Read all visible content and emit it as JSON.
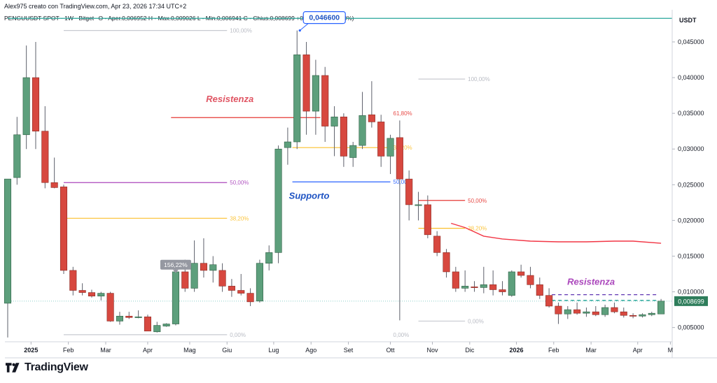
{
  "header": {
    "author_line": "Alex975 creato con TradingView.com, Apr 23, 2026 17:34 UTC+2",
    "symbol": "PENGUUSDT SPOT · 1W · Bitget",
    "ohlc": "O - Aper.0,006952 H - Max.0,009026 L - Min.0,006941 C - Chius.0,008699 +0,001747 (+25,13%)"
  },
  "footer": {
    "brand": "TradingView"
  },
  "chart_data": {
    "type": "candlestick",
    "timeframe": "1W",
    "currency": "USDT",
    "y_range": [
      0.0033,
      0.0495
    ],
    "y_ticks": [
      "0,045000",
      "0,040000",
      "0,035000",
      "0,030000",
      "0,025000",
      "0,020000",
      "0,015000",
      "0,010000",
      "0,005000"
    ],
    "y_tick_values": [
      0.045,
      0.04,
      0.035,
      0.03,
      0.025,
      0.02,
      0.015,
      0.01,
      0.005
    ],
    "x_labels": [
      {
        "label": "2025",
        "bold": true
      },
      {
        "label": "Feb"
      },
      {
        "label": "Mar"
      },
      {
        "label": "Apr"
      },
      {
        "label": "Mag"
      },
      {
        "label": "Giu"
      },
      {
        "label": "Lug"
      },
      {
        "label": "Ago"
      },
      {
        "label": "Set"
      },
      {
        "label": "Ott"
      },
      {
        "label": "Nov"
      },
      {
        "label": "Dic"
      },
      {
        "label": "2026",
        "bold": true
      },
      {
        "label": "Feb"
      },
      {
        "label": "Mar"
      },
      {
        "label": "Apr"
      },
      {
        "label": "M"
      }
    ],
    "x_label_index": [
      2.5,
      6.5,
      10.5,
      15,
      19.5,
      23.5,
      28.5,
      32.5,
      36.5,
      41,
      45.5,
      49.5,
      54.5,
      58.5,
      62.5,
      67.5,
      71
    ],
    "candles": [
      {
        "o": 0.0084,
        "h": 0.0255,
        "l": 0.0036,
        "c": 0.0258
      },
      {
        "o": 0.026,
        "h": 0.0345,
        "l": 0.025,
        "c": 0.032
      },
      {
        "o": 0.032,
        "h": 0.0445,
        "l": 0.03,
        "c": 0.04
      },
      {
        "o": 0.04,
        "h": 0.045,
        "l": 0.03,
        "c": 0.0325
      },
      {
        "o": 0.0325,
        "h": 0.036,
        "l": 0.0245,
        "c": 0.0253
      },
      {
        "o": 0.0253,
        "h": 0.0288,
        "l": 0.0245,
        "c": 0.0246
      },
      {
        "o": 0.0247,
        "h": 0.025,
        "l": 0.0125,
        "c": 0.013
      },
      {
        "o": 0.013,
        "h": 0.0135,
        "l": 0.0095,
        "c": 0.0102
      },
      {
        "o": 0.0102,
        "h": 0.0112,
        "l": 0.0095,
        "c": 0.0099
      },
      {
        "o": 0.0099,
        "h": 0.0103,
        "l": 0.0092,
        "c": 0.0094
      },
      {
        "o": 0.0094,
        "h": 0.01,
        "l": 0.0088,
        "c": 0.0098
      },
      {
        "o": 0.0098,
        "h": 0.01,
        "l": 0.0058,
        "c": 0.0059
      },
      {
        "o": 0.0059,
        "h": 0.0072,
        "l": 0.0054,
        "c": 0.0066
      },
      {
        "o": 0.0066,
        "h": 0.0072,
        "l": 0.0062,
        "c": 0.0064
      },
      {
        "o": 0.0064,
        "h": 0.0074,
        "l": 0.0063,
        "c": 0.0065
      },
      {
        "o": 0.0065,
        "h": 0.0068,
        "l": 0.0045,
        "c": 0.0045
      },
      {
        "o": 0.0044,
        "h": 0.0058,
        "l": 0.0043,
        "c": 0.0053
      },
      {
        "o": 0.0052,
        "h": 0.0056,
        "l": 0.0051,
        "c": 0.0055
      },
      {
        "o": 0.0055,
        "h": 0.0135,
        "l": 0.0053,
        "c": 0.0128
      },
      {
        "o": 0.0128,
        "h": 0.0145,
        "l": 0.01,
        "c": 0.0105
      },
      {
        "o": 0.0105,
        "h": 0.0172,
        "l": 0.01,
        "c": 0.014
      },
      {
        "o": 0.014,
        "h": 0.0175,
        "l": 0.012,
        "c": 0.013
      },
      {
        "o": 0.013,
        "h": 0.015,
        "l": 0.0113,
        "c": 0.0138
      },
      {
        "o": 0.013,
        "h": 0.014,
        "l": 0.01,
        "c": 0.0108
      },
      {
        "o": 0.0108,
        "h": 0.0118,
        "l": 0.0093,
        "c": 0.0102
      },
      {
        "o": 0.0102,
        "h": 0.0125,
        "l": 0.0095,
        "c": 0.0098
      },
      {
        "o": 0.0098,
        "h": 0.0105,
        "l": 0.008,
        "c": 0.0086
      },
      {
        "o": 0.0087,
        "h": 0.0145,
        "l": 0.0085,
        "c": 0.014
      },
      {
        "o": 0.014,
        "h": 0.0165,
        "l": 0.013,
        "c": 0.0155
      },
      {
        "o": 0.0155,
        "h": 0.0305,
        "l": 0.014,
        "c": 0.03
      },
      {
        "o": 0.0302,
        "h": 0.033,
        "l": 0.0278,
        "c": 0.031
      },
      {
        "o": 0.031,
        "h": 0.0466,
        "l": 0.03,
        "c": 0.0432
      },
      {
        "o": 0.0432,
        "h": 0.045,
        "l": 0.032,
        "c": 0.0353
      },
      {
        "o": 0.0353,
        "h": 0.0425,
        "l": 0.032,
        "c": 0.0403
      },
      {
        "o": 0.0403,
        "h": 0.0415,
        "l": 0.031,
        "c": 0.0332
      },
      {
        "o": 0.0332,
        "h": 0.036,
        "l": 0.029,
        "c": 0.0345
      },
      {
        "o": 0.0345,
        "h": 0.035,
        "l": 0.0275,
        "c": 0.029
      },
      {
        "o": 0.0288,
        "h": 0.031,
        "l": 0.0275,
        "c": 0.0305
      },
      {
        "o": 0.0305,
        "h": 0.038,
        "l": 0.03,
        "c": 0.0347
      },
      {
        "o": 0.0348,
        "h": 0.0395,
        "l": 0.033,
        "c": 0.0338
      },
      {
        "o": 0.0338,
        "h": 0.0348,
        "l": 0.0275,
        "c": 0.029
      },
      {
        "o": 0.029,
        "h": 0.032,
        "l": 0.0265,
        "c": 0.0315
      },
      {
        "o": 0.0316,
        "h": 0.034,
        "l": 0.006,
        "c": 0.0258
      },
      {
        "o": 0.0258,
        "h": 0.027,
        "l": 0.02,
        "c": 0.0222
      },
      {
        "o": 0.0222,
        "h": 0.024,
        "l": 0.02,
        "c": 0.0222
      },
      {
        "o": 0.0222,
        "h": 0.0235,
        "l": 0.0175,
        "c": 0.018
      },
      {
        "o": 0.0178,
        "h": 0.0185,
        "l": 0.015,
        "c": 0.0155
      },
      {
        "o": 0.0155,
        "h": 0.016,
        "l": 0.012,
        "c": 0.0128
      },
      {
        "o": 0.0128,
        "h": 0.0135,
        "l": 0.01,
        "c": 0.0105
      },
      {
        "o": 0.0105,
        "h": 0.013,
        "l": 0.01,
        "c": 0.0108
      },
      {
        "o": 0.0107,
        "h": 0.0115,
        "l": 0.01,
        "c": 0.0106
      },
      {
        "o": 0.0106,
        "h": 0.0135,
        "l": 0.0098,
        "c": 0.011
      },
      {
        "o": 0.011,
        "h": 0.013,
        "l": 0.0095,
        "c": 0.0103
      },
      {
        "o": 0.0103,
        "h": 0.0115,
        "l": 0.0095,
        "c": 0.01
      },
      {
        "o": 0.0095,
        "h": 0.013,
        "l": 0.0093,
        "c": 0.0128
      },
      {
        "o": 0.0128,
        "h": 0.0138,
        "l": 0.012,
        "c": 0.0123
      },
      {
        "o": 0.0123,
        "h": 0.0135,
        "l": 0.0105,
        "c": 0.011
      },
      {
        "o": 0.011,
        "h": 0.012,
        "l": 0.009,
        "c": 0.0095
      },
      {
        "o": 0.0095,
        "h": 0.0105,
        "l": 0.0078,
        "c": 0.008
      },
      {
        "o": 0.008,
        "h": 0.0085,
        "l": 0.0055,
        "c": 0.0069
      },
      {
        "o": 0.0069,
        "h": 0.008,
        "l": 0.0062,
        "c": 0.0075
      },
      {
        "o": 0.0075,
        "h": 0.0085,
        "l": 0.0068,
        "c": 0.007
      },
      {
        "o": 0.007,
        "h": 0.0078,
        "l": 0.0065,
        "c": 0.0072
      },
      {
        "o": 0.0072,
        "h": 0.008,
        "l": 0.0066,
        "c": 0.0068
      },
      {
        "o": 0.0068,
        "h": 0.0082,
        "l": 0.0065,
        "c": 0.0078
      },
      {
        "o": 0.0078,
        "h": 0.0085,
        "l": 0.007,
        "c": 0.0072
      },
      {
        "o": 0.0072,
        "h": 0.0078,
        "l": 0.0064,
        "c": 0.0067
      },
      {
        "o": 0.0067,
        "h": 0.007,
        "l": 0.0063,
        "c": 0.0066
      },
      {
        "o": 0.0066,
        "h": 0.007,
        "l": 0.0064,
        "c": 0.0068
      },
      {
        "o": 0.0068,
        "h": 0.0072,
        "l": 0.0066,
        "c": 0.007
      },
      {
        "o": 0.0069,
        "h": 0.009,
        "l": 0.0069,
        "c": 0.0087
      }
    ],
    "last_price": {
      "value": "0,008699",
      "price": 0.008699
    },
    "high_callout": {
      "label": "0,046600",
      "price": 0.0466,
      "index": 31
    },
    "low_callout": {
      "label": "156,22%",
      "price": 0.0136,
      "index": 18
    },
    "horizontal_lines": [
      {
        "name": "top-line",
        "price": 0.0483,
        "color": "#26a69a",
        "from": 0,
        "to": 72
      },
      {
        "name": "resistenza-line-1",
        "price": 0.0344,
        "color": "#e53935",
        "from": 17.5,
        "to": 33.5
      },
      {
        "name": "supporto-line",
        "price": 0.0254,
        "color": "#2962ff",
        "from": 30.5,
        "to": 41
      },
      {
        "name": "purple-dashed-line",
        "price": 0.0096,
        "color": "#5e35b1",
        "from": 58.3,
        "to": 69.5,
        "dash": true
      },
      {
        "name": "green-dashed-line",
        "price": 0.0088,
        "color": "#26a69a",
        "from": 58.3,
        "to": 69.5,
        "dash": true
      }
    ],
    "fib_sets": [
      {
        "from": 6,
        "to": 23.5,
        "levels": [
          {
            "pct": "100,00%",
            "price": 0.0466,
            "color": "#b2b5be"
          },
          {
            "pct": "50,00%",
            "price": 0.0253,
            "color": "#ab47bc"
          },
          {
            "pct": "38,20%",
            "price": 0.0203,
            "color": "#fbc02d"
          },
          {
            "pct": "0,00%",
            "price": 0.004,
            "color": "#b2b5be"
          }
        ]
      },
      {
        "from": 30.5,
        "to": 41,
        "levels": [
          {
            "pct": "61,80%",
            "price": 0.035,
            "color": "#e53935",
            "show_line": false
          },
          {
            "pct": "38,20%",
            "price": 0.0302,
            "color": "#fbc02d"
          },
          {
            "pct": "50,00%",
            "price": 0.0254,
            "color": "#2962ff",
            "show_line": false
          },
          {
            "pct": "0,00%",
            "price": 0.004,
            "color": "#b2b5be",
            "show_line": false
          }
        ]
      },
      {
        "from": 44,
        "to": 49,
        "levels": [
          {
            "pct": "100,00%",
            "price": 0.0398,
            "color": "#b2b5be"
          },
          {
            "pct": "50,00%",
            "price": 0.0228,
            "color": "#e53935"
          },
          {
            "pct": "38,20%",
            "price": 0.0189,
            "color": "#fbc02d"
          },
          {
            "pct": "0,00%",
            "price": 0.0059,
            "color": "#b2b5be"
          }
        ]
      }
    ],
    "moving_average": {
      "color": "#f23645",
      "points": [
        {
          "i": 47.5,
          "p": 0.0196
        },
        {
          "i": 49,
          "p": 0.019
        },
        {
          "i": 51,
          "p": 0.0178
        },
        {
          "i": 53,
          "p": 0.0174
        },
        {
          "i": 56,
          "p": 0.0171
        },
        {
          "i": 59,
          "p": 0.017
        },
        {
          "i": 62,
          "p": 0.017
        },
        {
          "i": 65,
          "p": 0.0171
        },
        {
          "i": 67,
          "p": 0.0171
        },
        {
          "i": 70,
          "p": 0.0168
        }
      ]
    },
    "annotations": [
      {
        "name": "resistenza-label-1",
        "text": "Resistenza",
        "price": 0.0366,
        "index": 23.8,
        "color": "#e05563"
      },
      {
        "name": "supporto-label",
        "text": "Supporto",
        "price": 0.023,
        "index": 32.3,
        "color": "#1e53c3"
      },
      {
        "name": "resistenza-label-2",
        "text": "Resistenza",
        "price": 0.011,
        "index": 62.5,
        "color": "#ab47bc"
      }
    ],
    "colors": {
      "up": "#5d9f7c",
      "down": "#d7483f",
      "up_border": "#2e5f44",
      "down_border": "#8b2a24"
    }
  }
}
